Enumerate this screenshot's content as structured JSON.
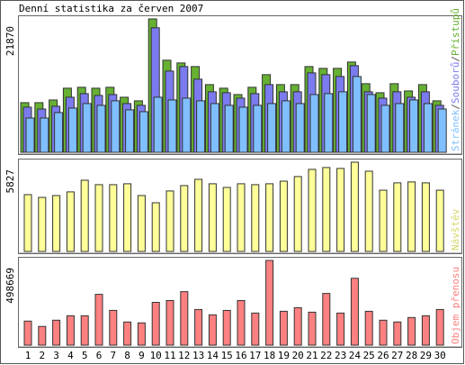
{
  "chart_data": [
    {
      "type": "bar",
      "title": "Denní statistika za červen 2007",
      "legend_separator": "/",
      "ylim": [
        0,
        21870
      ],
      "yticks": [
        21870
      ],
      "series": [
        {
          "name": "Přístupů",
          "color": "#66b032",
          "values": [
            8140,
            8140,
            8580,
            10510,
            10660,
            10510,
            10660,
            9030,
            8440,
            21870,
            15100,
            14650,
            14060,
            11100,
            10510,
            9470,
            10660,
            12730,
            11100,
            11100,
            14060,
            13760,
            13760,
            14800,
            11250,
            9770,
            11250,
            10060,
            11100,
            8440
          ]
        },
        {
          "name": "Souborů",
          "color": "#7b7bef",
          "values": [
            7400,
            7100,
            7550,
            9030,
            9620,
            9320,
            9470,
            7990,
            7700,
            20420,
            13320,
            14060,
            11990,
            9920,
            9770,
            8880,
            9620,
            11100,
            9920,
            9920,
            13020,
            12730,
            12430,
            14210,
            9920,
            8880,
            9920,
            9030,
            9920,
            7700
          ]
        },
        {
          "name": "Stránek",
          "color": "#7fbfff",
          "values": [
            5620,
            5620,
            6510,
            7250,
            7990,
            7700,
            8440,
            6960,
            6660,
            9030,
            8580,
            8880,
            8440,
            7990,
            7700,
            7400,
            7700,
            7990,
            8440,
            7990,
            9470,
            9620,
            9920,
            12430,
            9470,
            7700,
            7990,
            8580,
            7990,
            7100
          ]
        }
      ]
    },
    {
      "type": "bar",
      "ylim": [
        0,
        5827
      ],
      "yticks": [
        5827
      ],
      "series": [
        {
          "name": "Návštěv",
          "color": "#ffff99",
          "legend_color": "#d6d66a",
          "values": [
            3710,
            3530,
            3650,
            3890,
            4650,
            4360,
            4360,
            4420,
            3650,
            3180,
            3950,
            4300,
            4710,
            4420,
            4180,
            4420,
            4360,
            4420,
            4590,
            4890,
            5360,
            5480,
            5420,
            5827,
            5240,
            4000,
            4480,
            4540,
            4480,
            4000
          ]
        }
      ]
    },
    {
      "type": "bar",
      "ylim": [
        0,
        498669
      ],
      "yticks": [
        498669
      ],
      "categories": [
        "1",
        "2",
        "3",
        "4",
        "5",
        "6",
        "7",
        "8",
        "9",
        "10",
        "11",
        "12",
        "13",
        "14",
        "15",
        "16",
        "17",
        "18",
        "19",
        "20",
        "21",
        "22",
        "23",
        "24",
        "25",
        "26",
        "27",
        "28",
        "29",
        "30"
      ],
      "category_colors": [
        "#000",
        "#000",
        "#000",
        "#000",
        "#000",
        "#000",
        "#000",
        "#000",
        "#4a9a1a",
        "#4a9a1a",
        "#000",
        "#000",
        "#000",
        "#000",
        "#000",
        "#4a9a1a",
        "#4a9a1a",
        "#000",
        "#000",
        "#000",
        "#000",
        "#000",
        "#4a9a1a",
        "#4a9a1a",
        "#000",
        "#000",
        "#000",
        "#000",
        "#000",
        "#4a9a1a"
      ],
      "series": [
        {
          "name": "Objem přenosu",
          "color": "#ff8080",
          "values": [
            141700,
            110200,
            147000,
            173200,
            173200,
            299200,
            204700,
            136500,
            131200,
            252000,
            262500,
            314900,
            210000,
            178500,
            204700,
            262500,
            189000,
            498669,
            199500,
            220500,
            194200,
            304400,
            189000,
            393700,
            199500,
            147000,
            136500,
            162700,
            173200,
            210000
          ]
        }
      ]
    }
  ]
}
